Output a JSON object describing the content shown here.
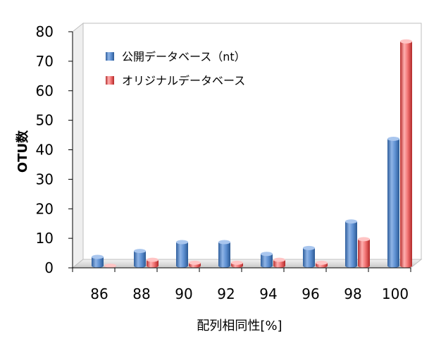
{
  "chart_data": {
    "type": "bar",
    "xlabel": "配列相同性[%]",
    "ylabel": "OTU数",
    "ylim": [
      0,
      80
    ],
    "yticks": [
      0,
      10,
      20,
      30,
      40,
      50,
      60,
      70,
      80
    ],
    "categories": [
      "86",
      "88",
      "90",
      "92",
      "94",
      "96",
      "98",
      "100"
    ],
    "series": [
      {
        "name": "公開データベース（nt）",
        "color": "#4f81bd",
        "values": [
          3,
          5,
          8,
          8,
          4,
          6,
          15,
          43
        ]
      },
      {
        "name": "オリジナルデータベース",
        "color": "#e25d5d",
        "values": [
          0,
          2,
          1,
          1,
          2,
          1,
          9,
          76
        ]
      }
    ],
    "legend_position": "top-left",
    "grid": false,
    "style": "3d-cylinder"
  }
}
